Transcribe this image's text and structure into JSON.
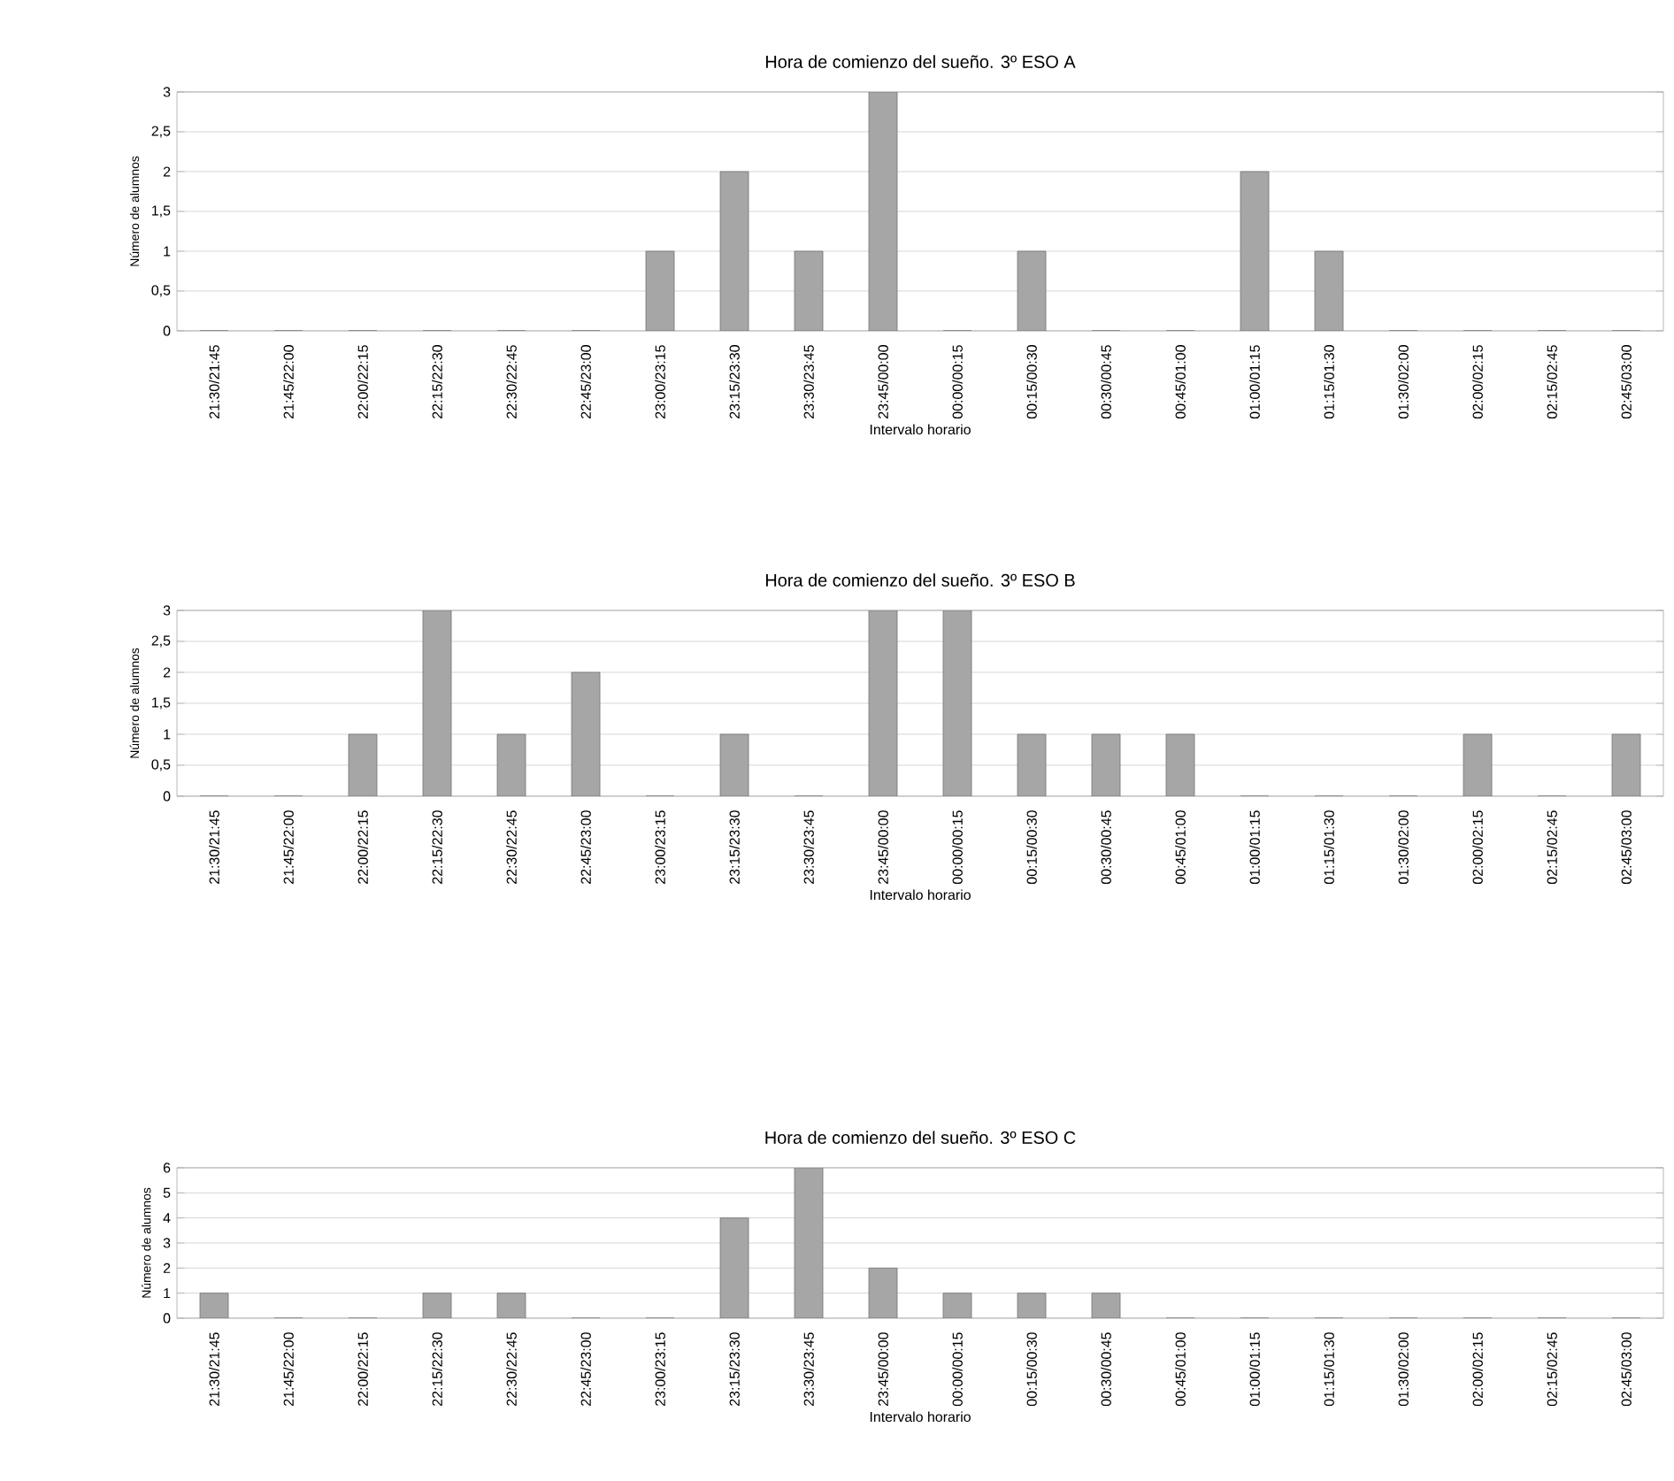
{
  "chart_data": [
    {
      "type": "bar",
      "title": "Hora de comienzo del sueño. 3º ESO A",
      "xlabel": "Intervalo horario",
      "ylabel": "Número de alumnos",
      "categories": [
        "21:30/21:45",
        "21:45/22:00",
        "22:00/22:15",
        "22:15/22:30",
        "22:30/22:45",
        "22:45/23:00",
        "23:00/23:15",
        "23:15/23:30",
        "23:30/23:45",
        "23:45/00:00",
        "00:00/00:15",
        "00:15/00:30",
        "00:30/00:45",
        "00:45/01:00",
        "01:00/01:15",
        "01:15/01:30",
        "01:30/02:00",
        "02:00/02:15",
        "02:15/02:45",
        "02:45/03:00"
      ],
      "values": [
        0,
        0,
        0,
        0,
        0,
        0,
        1,
        2,
        1,
        3,
        0,
        1,
        0,
        0,
        2,
        1,
        0,
        0,
        0,
        0
      ],
      "color": "#a6a6a6",
      "ylim": [
        0,
        3
      ],
      "yticks": [
        0,
        {
          "value": 0.5,
          "label": "0,5"
        },
        1,
        {
          "value": 1.5,
          "label": "1,5"
        },
        2,
        {
          "value": 2.5,
          "label": "2,5"
        },
        3
      ],
      "grid": "y"
    },
    {
      "type": "bar",
      "title": "Hora de comienzo del sueño. 3º ESO B",
      "xlabel": "Intervalo horario",
      "ylabel": "Número de alumnos",
      "categories": [
        "21:30/21:45",
        "21:45/22:00",
        "22:00/22:15",
        "22:15/22:30",
        "22:30/22:45",
        "22:45/23:00",
        "23:00/23:15",
        "23:15/23:30",
        "23:30/23:45",
        "23:45/00:00",
        "00:00/00:15",
        "00:15/00:30",
        "00:30/00:45",
        "00:45/01:00",
        "01:00/01:15",
        "01:15/01:30",
        "01:30/02:00",
        "02:00/02:15",
        "02:15/02:45",
        "02:45/03:00"
      ],
      "values": [
        0,
        0,
        1,
        3,
        1,
        2,
        0,
        1,
        0,
        3,
        3,
        1,
        1,
        1,
        0,
        0,
        0,
        1,
        0,
        1
      ],
      "color": "#a6a6a6",
      "ylim": [
        0,
        3
      ],
      "yticks": [
        0,
        {
          "value": 0.5,
          "label": "0,5"
        },
        1,
        {
          "value": 1.5,
          "label": "1,5"
        },
        2,
        {
          "value": 2.5,
          "label": "2,5"
        },
        3
      ],
      "grid": "y"
    },
    {
      "type": "bar",
      "title": "Hora de comienzo del sueño. 3º ESO C",
      "xlabel": "Intervalo horario",
      "ylabel": "Número de alumnos",
      "categories": [
        "21:30/21:45",
        "21:45/22:00",
        "22:00/22:15",
        "22:15/22:30",
        "22:30/22:45",
        "22:45/23:00",
        "23:00/23:15",
        "23:15/23:30",
        "23:30/23:45",
        "23:45/00:00",
        "00:00/00:15",
        "00:15/00:30",
        "00:30/00:45",
        "00:45/01:00",
        "01:00/01:15",
        "01:15/01:30",
        "01:30/02:00",
        "02:00/02:15",
        "02:15/02:45",
        "02:45/03:00"
      ],
      "values": [
        1,
        0,
        0,
        1,
        1,
        0,
        0,
        4,
        6,
        2,
        1,
        1,
        1,
        0,
        0,
        0,
        0,
        0,
        0,
        0
      ],
      "color": "#a6a6a6",
      "ylim": [
        0,
        6
      ],
      "yticks": [
        0,
        1,
        2,
        3,
        4,
        5,
        6
      ],
      "grid": "y"
    }
  ]
}
